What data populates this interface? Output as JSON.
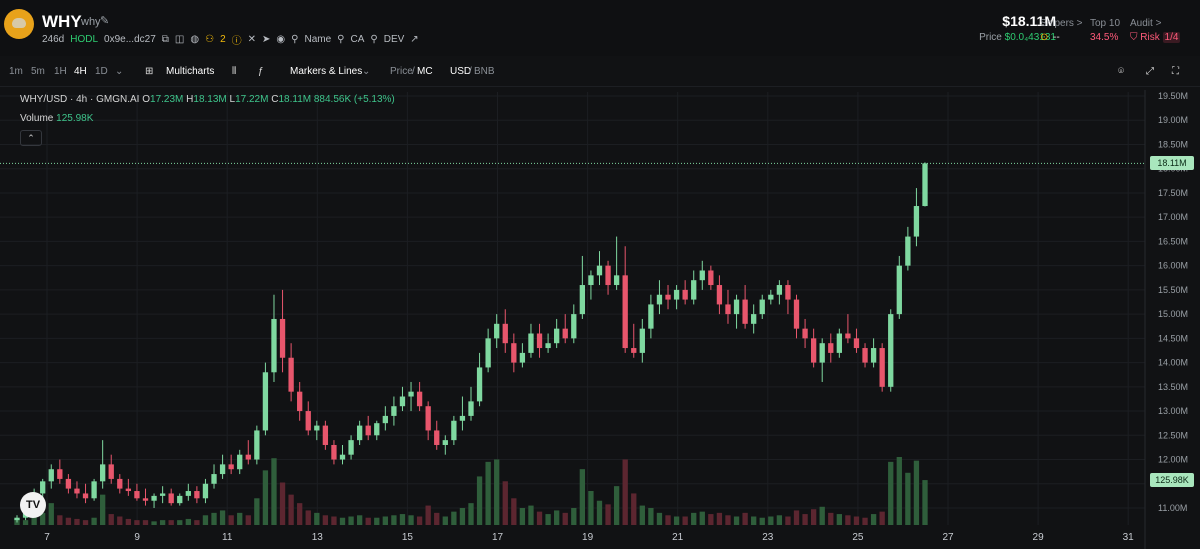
{
  "header": {
    "ticker": "WHY",
    "name": "why",
    "age": "246d",
    "hodl": "HODL",
    "address": "0x9e...dc27",
    "holders_count": "2",
    "search_name": "Name",
    "search_ca": "CA",
    "search_dev": "DEV",
    "price_main": "$18.11M",
    "price_label": "Price",
    "price_value": "$0.0₄43131",
    "snipers_label": "Snipers >",
    "snipers_value": "--",
    "top10_label": "Top 10",
    "top10_value": "34.5%",
    "audit_label": "Audit >",
    "risk_label": "Risk",
    "risk_value": "1/4"
  },
  "toolbar": {
    "timeframes": [
      "1m",
      "5m",
      "1H",
      "4H",
      "1D"
    ],
    "active_timeframe": "4H",
    "multicharts": "Multicharts",
    "markers": "Markers & Lines",
    "price": "Price",
    "mc": "MC",
    "usd": "USD",
    "bnb": "BNB"
  },
  "legend": {
    "symbol": "WHY/USD · 4h · GMGN.AI",
    "o_label": "O",
    "o": "17.23M",
    "h_label": "H",
    "h": "18.13M",
    "l_label": "L",
    "l": "17.22M",
    "c_label": "C",
    "c": "18.11M",
    "change": "884.56K (+5.13%)",
    "volume_label": "Volume",
    "volume": "125.98K"
  },
  "chart_data": {
    "type": "candlestick",
    "y_ticks": [
      "19.50M",
      "19.00M",
      "18.50M",
      "18.00M",
      "17.50M",
      "17.00M",
      "16.50M",
      "16.00M",
      "15.50M",
      "15.00M",
      "14.50M",
      "14.00M",
      "13.50M",
      "13.00M",
      "12.50M",
      "12.00M",
      "11.50M",
      "11.00M"
    ],
    "ylim": [
      10.7,
      19.6
    ],
    "x_ticks": [
      "7",
      "9",
      "11",
      "13",
      "15",
      "17",
      "19",
      "21",
      "23",
      "25",
      "27",
      "29",
      "31"
    ],
    "last_price_label": "18.11M",
    "last_price": 18.11,
    "volume_label": "125.98K",
    "colors": {
      "up": "#7fd8a0",
      "down": "#e8566c",
      "up_vol": "#2f5e3b",
      "down_vol": "#5c2630",
      "grid": "#1c1e22",
      "bg": "#111214"
    },
    "candles": [
      [
        10.75,
        10.85,
        10.7,
        10.8
      ],
      [
        10.8,
        10.95,
        10.75,
        10.9
      ],
      [
        10.9,
        11.4,
        10.85,
        11.3
      ],
      [
        11.3,
        11.6,
        11.2,
        11.55
      ],
      [
        11.55,
        11.9,
        11.4,
        11.8
      ],
      [
        11.8,
        12.0,
        11.5,
        11.6
      ],
      [
        11.6,
        11.7,
        11.3,
        11.4
      ],
      [
        11.4,
        11.55,
        11.2,
        11.3
      ],
      [
        11.3,
        11.5,
        11.1,
        11.2
      ],
      [
        11.2,
        11.6,
        11.15,
        11.55
      ],
      [
        11.55,
        12.4,
        11.4,
        11.9
      ],
      [
        11.9,
        12.1,
        11.5,
        11.6
      ],
      [
        11.6,
        11.7,
        11.3,
        11.4
      ],
      [
        11.4,
        11.6,
        11.25,
        11.35
      ],
      [
        11.35,
        11.5,
        11.15,
        11.2
      ],
      [
        11.2,
        11.4,
        11.05,
        11.15
      ],
      [
        11.15,
        11.3,
        11.0,
        11.25
      ],
      [
        11.25,
        11.45,
        11.1,
        11.3
      ],
      [
        11.3,
        11.4,
        11.05,
        11.1
      ],
      [
        11.1,
        11.3,
        11.05,
        11.25
      ],
      [
        11.25,
        11.5,
        11.15,
        11.35
      ],
      [
        11.35,
        11.45,
        11.1,
        11.2
      ],
      [
        11.2,
        11.6,
        11.1,
        11.5
      ],
      [
        11.5,
        11.9,
        11.4,
        11.7
      ],
      [
        11.7,
        12.1,
        11.6,
        11.9
      ],
      [
        11.9,
        12.1,
        11.7,
        11.8
      ],
      [
        11.8,
        12.2,
        11.7,
        12.1
      ],
      [
        12.1,
        12.4,
        11.9,
        12.0
      ],
      [
        12.0,
        12.7,
        11.9,
        12.6
      ],
      [
        12.6,
        14.0,
        12.5,
        13.8
      ],
      [
        13.8,
        15.4,
        13.6,
        14.9
      ],
      [
        14.9,
        15.5,
        13.8,
        14.1
      ],
      [
        14.1,
        14.4,
        13.2,
        13.4
      ],
      [
        13.4,
        13.6,
        12.8,
        13.0
      ],
      [
        13.0,
        13.2,
        12.5,
        12.6
      ],
      [
        12.6,
        12.8,
        12.4,
        12.7
      ],
      [
        12.7,
        12.8,
        12.2,
        12.3
      ],
      [
        12.3,
        12.4,
        11.9,
        12.0
      ],
      [
        12.0,
        12.3,
        11.9,
        12.1
      ],
      [
        12.1,
        12.5,
        12.0,
        12.4
      ],
      [
        12.4,
        12.8,
        12.3,
        12.7
      ],
      [
        12.7,
        12.9,
        12.4,
        12.5
      ],
      [
        12.5,
        12.8,
        12.4,
        12.75
      ],
      [
        12.75,
        13.1,
        12.6,
        12.9
      ],
      [
        12.9,
        13.3,
        12.7,
        13.1
      ],
      [
        13.1,
        13.5,
        13.0,
        13.3
      ],
      [
        13.3,
        13.6,
        13.0,
        13.4
      ],
      [
        13.4,
        13.6,
        13.0,
        13.1
      ],
      [
        13.1,
        13.2,
        12.4,
        12.6
      ],
      [
        12.6,
        12.8,
        12.2,
        12.3
      ],
      [
        12.3,
        12.5,
        12.1,
        12.4
      ],
      [
        12.4,
        12.9,
        12.3,
        12.8
      ],
      [
        12.8,
        13.3,
        12.6,
        12.9
      ],
      [
        12.9,
        13.5,
        12.8,
        13.2
      ],
      [
        13.2,
        14.2,
        13.1,
        13.9
      ],
      [
        13.9,
        14.7,
        13.8,
        14.5
      ],
      [
        14.5,
        15.0,
        14.3,
        14.8
      ],
      [
        14.8,
        15.1,
        14.2,
        14.4
      ],
      [
        14.4,
        14.6,
        13.8,
        14.0
      ],
      [
        14.0,
        14.4,
        13.9,
        14.2
      ],
      [
        14.2,
        14.8,
        14.1,
        14.6
      ],
      [
        14.6,
        14.8,
        14.1,
        14.3
      ],
      [
        14.3,
        14.6,
        14.2,
        14.4
      ],
      [
        14.4,
        14.9,
        14.3,
        14.7
      ],
      [
        14.7,
        15.0,
        14.4,
        14.5
      ],
      [
        14.5,
        15.2,
        14.4,
        15.0
      ],
      [
        15.0,
        16.2,
        14.9,
        15.6
      ],
      [
        15.6,
        15.9,
        15.3,
        15.8
      ],
      [
        15.8,
        16.3,
        15.6,
        16.0
      ],
      [
        16.0,
        16.1,
        15.4,
        15.6
      ],
      [
        15.6,
        16.6,
        15.5,
        15.8
      ],
      [
        15.8,
        16.4,
        14.2,
        14.3
      ],
      [
        14.3,
        14.8,
        14.1,
        14.2
      ],
      [
        14.2,
        14.9,
        14.0,
        14.7
      ],
      [
        14.7,
        15.4,
        14.5,
        15.2
      ],
      [
        15.2,
        15.7,
        15.0,
        15.4
      ],
      [
        15.4,
        15.6,
        15.1,
        15.3
      ],
      [
        15.3,
        15.6,
        15.1,
        15.5
      ],
      [
        15.5,
        15.7,
        15.2,
        15.3
      ],
      [
        15.3,
        15.9,
        15.2,
        15.7
      ],
      [
        15.7,
        16.1,
        15.5,
        15.9
      ],
      [
        15.9,
        16.0,
        15.5,
        15.6
      ],
      [
        15.6,
        15.8,
        15.0,
        15.2
      ],
      [
        15.2,
        15.5,
        14.8,
        15.0
      ],
      [
        15.0,
        15.4,
        14.7,
        15.3
      ],
      [
        15.3,
        15.6,
        14.7,
        14.8
      ],
      [
        14.8,
        15.2,
        14.6,
        15.0
      ],
      [
        15.0,
        15.4,
        14.9,
        15.3
      ],
      [
        15.3,
        15.5,
        15.2,
        15.4
      ],
      [
        15.4,
        15.7,
        15.2,
        15.6
      ],
      [
        15.6,
        15.7,
        15.0,
        15.3
      ],
      [
        15.3,
        15.4,
        14.5,
        14.7
      ],
      [
        14.7,
        14.9,
        14.3,
        14.5
      ],
      [
        14.5,
        14.7,
        13.9,
        14.0
      ],
      [
        14.0,
        14.5,
        13.6,
        14.4
      ],
      [
        14.4,
        14.6,
        14.0,
        14.2
      ],
      [
        14.2,
        14.7,
        14.1,
        14.6
      ],
      [
        14.6,
        15.0,
        14.4,
        14.5
      ],
      [
        14.5,
        14.7,
        14.2,
        14.3
      ],
      [
        14.3,
        14.4,
        13.9,
        14.0
      ],
      [
        14.0,
        14.5,
        13.9,
        14.3
      ],
      [
        14.3,
        14.4,
        13.4,
        13.5
      ],
      [
        13.5,
        15.1,
        13.4,
        15.0
      ],
      [
        15.0,
        16.2,
        14.9,
        16.0
      ],
      [
        16.0,
        16.8,
        15.9,
        16.6
      ],
      [
        16.6,
        17.6,
        16.4,
        17.23
      ],
      [
        17.23,
        18.13,
        17.22,
        18.11
      ]
    ],
    "volumes": [
      0.5,
      0.4,
      1.2,
      1.0,
      1.8,
      0.8,
      0.6,
      0.5,
      0.4,
      0.6,
      2.5,
      0.9,
      0.7,
      0.5,
      0.4,
      0.4,
      0.3,
      0.4,
      0.4,
      0.4,
      0.5,
      0.4,
      0.8,
      1.0,
      1.2,
      0.8,
      1.0,
      0.8,
      2.2,
      4.5,
      5.5,
      3.5,
      2.5,
      1.8,
      1.2,
      1.0,
      0.8,
      0.7,
      0.6,
      0.7,
      0.8,
      0.6,
      0.6,
      0.7,
      0.8,
      0.9,
      0.8,
      0.7,
      1.6,
      1.0,
      0.7,
      1.1,
      1.4,
      1.8,
      4.0,
      5.2,
      5.4,
      3.6,
      2.2,
      1.4,
      1.6,
      1.1,
      0.9,
      1.2,
      1.0,
      1.4,
      4.6,
      2.8,
      2.0,
      1.7,
      3.2,
      5.4,
      2.6,
      1.6,
      1.4,
      1.0,
      0.8,
      0.7,
      0.7,
      1.0,
      1.1,
      0.9,
      1.0,
      0.8,
      0.7,
      1.0,
      0.7,
      0.6,
      0.7,
      0.8,
      0.7,
      1.2,
      0.9,
      1.3,
      1.5,
      1.0,
      0.9,
      0.8,
      0.7,
      0.6,
      0.9,
      1.1,
      5.2,
      5.6,
      4.3,
      5.3,
      3.7
    ]
  }
}
